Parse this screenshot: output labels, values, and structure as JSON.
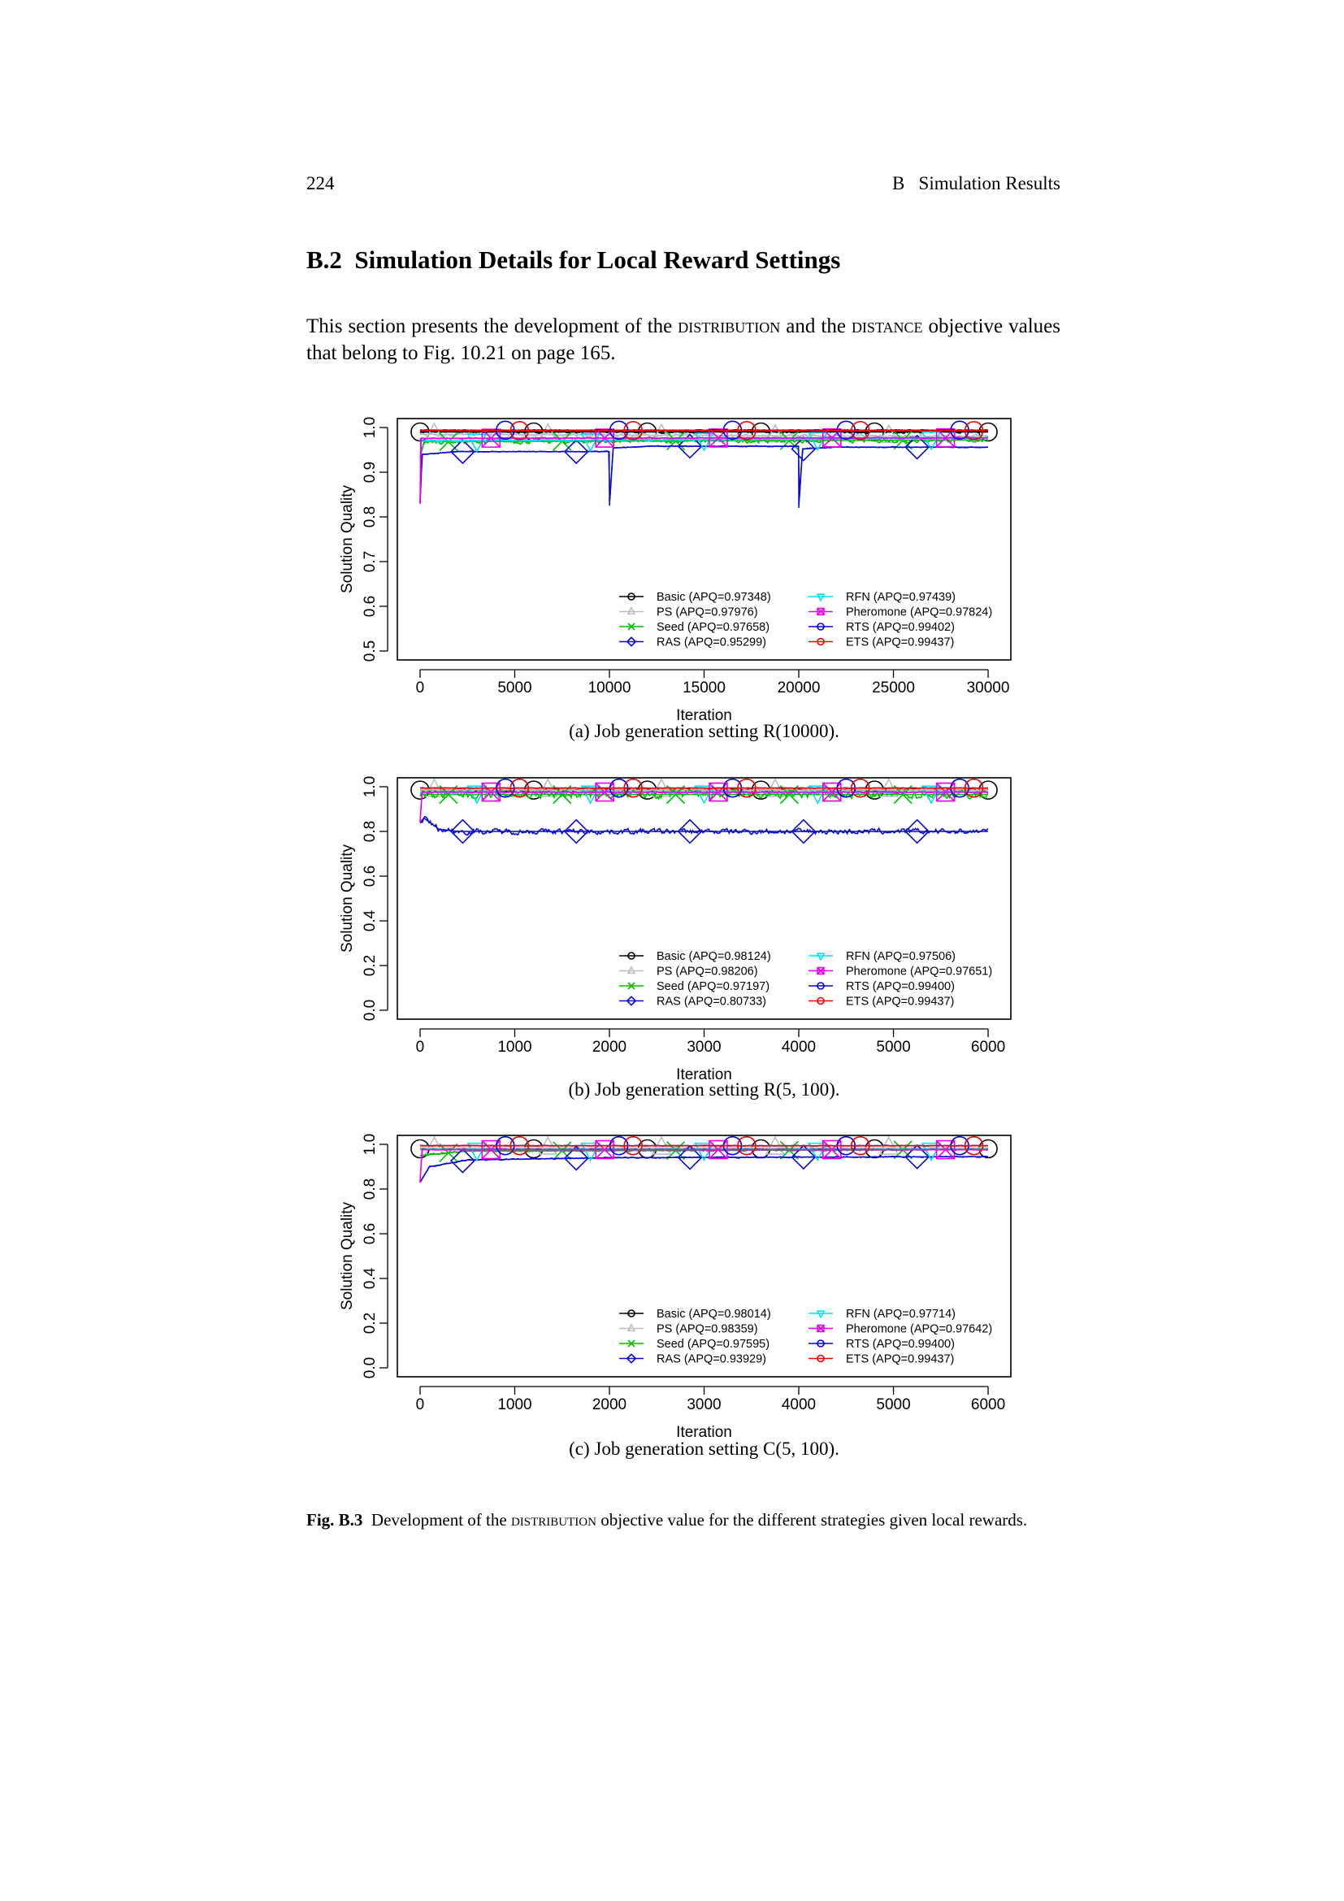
{
  "header": {
    "page_number": "224",
    "running_head": "B   Simulation Results"
  },
  "section": {
    "heading": "B.2  Simulation Details for Local Reward Settings"
  },
  "intro": {
    "p1": "This section presents the development of the ",
    "sc1": "distribution",
    "p2": " and the ",
    "sc2": "distance",
    "p3": " objective values that belong to Fig. 10.21 on page 165."
  },
  "figure": {
    "label": "Fig. B.3",
    "caption_pre": "  Development of the ",
    "caption_sc": "distribution",
    "caption_post": " objective value for the different strategies given local rewards."
  },
  "chart_data": [
    {
      "type": "line",
      "caption": "(a)  Job generation setting R(10000).",
      "xlabel": "Iteration",
      "ylabel": "Solution Quality",
      "xlim": [
        -1200,
        31200
      ],
      "ylim": [
        0.48,
        1.02
      ],
      "xticks": [
        "0",
        "5000",
        "10000",
        "15000",
        "20000",
        "25000",
        "30000"
      ],
      "xtick_values": [
        0,
        5000,
        10000,
        15000,
        20000,
        25000,
        30000
      ],
      "yticks": [
        "0.5",
        "0.6",
        "0.7",
        "0.8",
        "0.9",
        "1.0"
      ],
      "ytick_values": [
        0.5,
        0.6,
        0.7,
        0.8,
        0.9,
        1.0
      ],
      "legend_position": "bottom-right",
      "marker_period": 6000,
      "series": [
        {
          "label": "Basic (APQ=0.97348)",
          "color": "#000000",
          "marker": "circle",
          "marker_offset": 0,
          "noise": 0.002,
          "points": [
            [
              0,
              0.99
            ],
            [
              30000,
              0.99
            ]
          ]
        },
        {
          "label": "PS (APQ=0.97976)",
          "color": "#bebebe",
          "marker": "triangle-up",
          "marker_offset": 750,
          "noise": 0.003,
          "points": [
            [
              0,
              0.985
            ],
            [
              30000,
              0.98
            ]
          ]
        },
        {
          "label": "Seed (APQ=0.97658)",
          "color": "#00c000",
          "marker": "x",
          "marker_offset": 1500,
          "noise": 0.004,
          "points": [
            [
              0,
              0.93
            ],
            [
              200,
              0.968
            ],
            [
              30000,
              0.972
            ]
          ]
        },
        {
          "label": "RAS (APQ=0.95299)",
          "color": "#0a0ad0",
          "marker": "diamond",
          "marker_offset": 2250,
          "noise": 0.0008,
          "points": [
            [
              0,
              0.83
            ],
            [
              100,
              0.94
            ],
            [
              2000,
              0.946
            ],
            [
              9990,
              0.946
            ],
            [
              10000,
              0.825
            ],
            [
              10200,
              0.954
            ],
            [
              12000,
              0.958
            ],
            [
              19990,
              0.958
            ],
            [
              20000,
              0.82
            ],
            [
              20200,
              0.952
            ],
            [
              22000,
              0.956
            ],
            [
              30000,
              0.956
            ]
          ]
        },
        {
          "label": "RFN (APQ=0.97439)",
          "color": "#00e0ee",
          "marker": "triangle-down",
          "marker_offset": 3000,
          "noise": 0.002,
          "points": [
            [
              0,
              0.97
            ],
            [
              30000,
              0.976
            ]
          ]
        },
        {
          "label": "Pheromone (APQ=0.97824)",
          "color": "#ee00ee",
          "marker": "square-x",
          "marker_offset": 3750,
          "noise": 0.001,
          "points": [
            [
              0,
              0.83
            ],
            [
              30,
              0.976
            ],
            [
              30000,
              0.977
            ]
          ]
        },
        {
          "label": "RTS (APQ=0.99402)",
          "color": "#0000dd",
          "marker": "circle",
          "marker_offset": 4500,
          "noise": 0.0008,
          "points": [
            [
              0,
              0.994
            ],
            [
              30000,
              0.994
            ]
          ]
        },
        {
          "label": "ETS (APQ=0.99437)",
          "color": "#ee0000",
          "marker": "circle",
          "marker_offset": 5250,
          "noise": 0.0008,
          "points": [
            [
              0,
              0.993
            ],
            [
              30000,
              0.993
            ]
          ]
        }
      ]
    },
    {
      "type": "line",
      "caption": "(b)  Job generation setting R(5, 100).",
      "xlabel": "Iteration",
      "ylabel": "Solution Quality",
      "xlim": [
        -240,
        6240
      ],
      "ylim": [
        -0.04,
        1.04
      ],
      "xticks": [
        "0",
        "1000",
        "2000",
        "3000",
        "4000",
        "5000",
        "6000"
      ],
      "xtick_values": [
        0,
        1000,
        2000,
        3000,
        4000,
        5000,
        6000
      ],
      "yticks": [
        "0.0",
        "0.2",
        "0.4",
        "0.6",
        "0.8",
        "1.0"
      ],
      "ytick_values": [
        0,
        0.2,
        0.4,
        0.6,
        0.8,
        1.0
      ],
      "legend_position": "bottom-right",
      "marker_period": 1200,
      "series": [
        {
          "label": "Basic (APQ=0.98124)",
          "color": "#000000",
          "marker": "circle",
          "marker_offset": 0,
          "noise": 0.003,
          "points": [
            [
              0,
              0.985
            ],
            [
              6000,
              0.985
            ]
          ]
        },
        {
          "label": "PS (APQ=0.98206)",
          "color": "#bebebe",
          "marker": "triangle-up",
          "marker_offset": 150,
          "noise": 0.003,
          "points": [
            [
              0,
              0.985
            ],
            [
              6000,
              0.985
            ]
          ]
        },
        {
          "label": "Seed (APQ=0.97197)",
          "color": "#00c000",
          "marker": "x",
          "marker_offset": 300,
          "noise": 0.015,
          "points": [
            [
              0,
              0.965
            ],
            [
              6000,
              0.965
            ]
          ]
        },
        {
          "label": "RAS (APQ=0.80733)",
          "color": "#0a0ad0",
          "marker": "diamond",
          "marker_offset": 450,
          "noise": 0.01,
          "points": [
            [
              0,
              0.84
            ],
            [
              40,
              0.86
            ],
            [
              200,
              0.81
            ],
            [
              400,
              0.8
            ],
            [
              6000,
              0.8
            ]
          ]
        },
        {
          "label": "RFN (APQ=0.97506)",
          "color": "#00e0ee",
          "marker": "triangle-down",
          "marker_offset": 600,
          "noise": 0.004,
          "points": [
            [
              0,
              0.975
            ],
            [
              6000,
              0.975
            ]
          ]
        },
        {
          "label": "Pheromone (APQ=0.97651)",
          "color": "#ee00ee",
          "marker": "square-x",
          "marker_offset": 750,
          "noise": 0.002,
          "points": [
            [
              0,
              0.84
            ],
            [
              20,
              0.976
            ],
            [
              6000,
              0.976
            ]
          ]
        },
        {
          "label": "RTS (APQ=0.99400)",
          "color": "#0000dd",
          "marker": "circle",
          "marker_offset": 900,
          "noise": 0.001,
          "points": [
            [
              0,
              0.994
            ],
            [
              6000,
              0.994
            ]
          ]
        },
        {
          "label": "ETS (APQ=0.99437)",
          "color": "#ee0000",
          "marker": "circle",
          "marker_offset": 1050,
          "noise": 0.001,
          "points": [
            [
              0,
              0.994
            ],
            [
              6000,
              0.994
            ]
          ]
        }
      ]
    },
    {
      "type": "line",
      "caption": "(c)  Job generation setting C(5, 100).",
      "xlabel": "Iteration",
      "ylabel": "Solution Quality",
      "xlim": [
        -240,
        6240
      ],
      "ylim": [
        -0.04,
        1.04
      ],
      "xticks": [
        "0",
        "1000",
        "2000",
        "3000",
        "4000",
        "5000",
        "6000"
      ],
      "xtick_values": [
        0,
        1000,
        2000,
        3000,
        4000,
        5000,
        6000
      ],
      "yticks": [
        "0.0",
        "0.2",
        "0.4",
        "0.6",
        "0.8",
        "1.0"
      ],
      "ytick_values": [
        0,
        0.2,
        0.4,
        0.6,
        0.8,
        1.0
      ],
      "legend_position": "bottom-right",
      "marker_period": 1200,
      "series": [
        {
          "label": "Basic (APQ=0.98014)",
          "color": "#000000",
          "marker": "circle",
          "marker_offset": 0,
          "noise": 0.002,
          "points": [
            [
              0,
              0.98
            ],
            [
              6000,
              0.98
            ]
          ]
        },
        {
          "label": "PS (APQ=0.98359)",
          "color": "#bebebe",
          "marker": "triangle-up",
          "marker_offset": 150,
          "noise": 0.002,
          "points": [
            [
              0,
              0.984
            ],
            [
              6000,
              0.984
            ]
          ]
        },
        {
          "label": "Seed (APQ=0.97595)",
          "color": "#00c000",
          "marker": "x",
          "marker_offset": 300,
          "noise": 0.003,
          "points": [
            [
              0,
              0.95
            ],
            [
              500,
              0.97
            ],
            [
              6000,
              0.976
            ]
          ]
        },
        {
          "label": "RAS (APQ=0.93929)",
          "color": "#0a0ad0",
          "marker": "diamond",
          "marker_offset": 450,
          "noise": 0.002,
          "points": [
            [
              0,
              0.83
            ],
            [
              100,
              0.9
            ],
            [
              500,
              0.93
            ],
            [
              2000,
              0.94
            ],
            [
              6000,
              0.945
            ]
          ]
        },
        {
          "label": "RFN (APQ=0.97714)",
          "color": "#00e0ee",
          "marker": "triangle-down",
          "marker_offset": 600,
          "noise": 0.002,
          "points": [
            [
              0,
              0.977
            ],
            [
              6000,
              0.977
            ]
          ]
        },
        {
          "label": "Pheromone (APQ=0.97642)",
          "color": "#ee00ee",
          "marker": "square-x",
          "marker_offset": 750,
          "noise": 0.001,
          "points": [
            [
              0,
              0.83
            ],
            [
              20,
              0.976
            ],
            [
              6000,
              0.976
            ]
          ]
        },
        {
          "label": "RTS (APQ=0.99400)",
          "color": "#0000dd",
          "marker": "circle",
          "marker_offset": 900,
          "noise": 0.001,
          "points": [
            [
              0,
              0.994
            ],
            [
              6000,
              0.994
            ]
          ]
        },
        {
          "label": "ETS (APQ=0.99437)",
          "color": "#ee0000",
          "marker": "circle",
          "marker_offset": 1050,
          "noise": 0.001,
          "points": [
            [
              0,
              0.994
            ],
            [
              6000,
              0.994
            ]
          ]
        }
      ]
    }
  ]
}
